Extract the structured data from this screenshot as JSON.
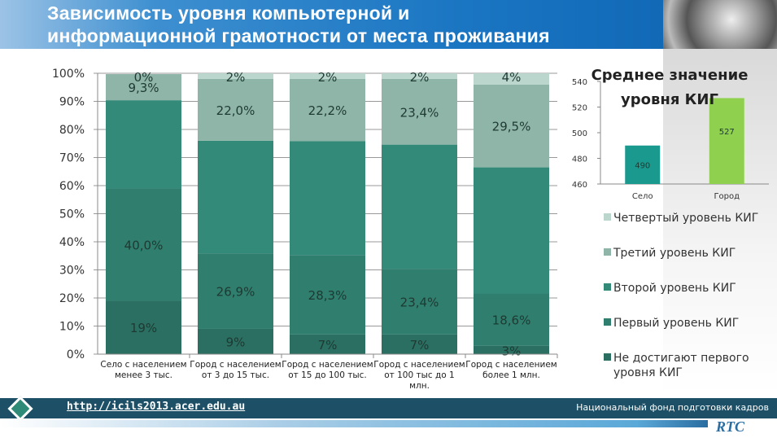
{
  "title_line1": "Зависимость уровня компьютерной и",
  "title_line2": "информационной грамотности от места проживания",
  "footer": {
    "url": "http://icils2013.acer.edu.au",
    "org": "Национальный фонд подготовки кадров",
    "logo": "RTC"
  },
  "chart_data": [
    {
      "type": "bar",
      "stacked": true,
      "ylim": [
        0,
        100
      ],
      "yticks": [
        "0%",
        "10%",
        "20%",
        "30%",
        "40%",
        "50%",
        "60%",
        "70%",
        "80%",
        "90%",
        "100%"
      ],
      "categories": [
        [
          "Село с населением",
          "менее 3 тыс."
        ],
        [
          "Город с населением",
          "от 3 до 15 тыс."
        ],
        [
          "Город с населением",
          "от 15 до 100 тыс."
        ],
        [
          "Город с населением",
          "от 100 тыс до 1",
          "млн."
        ],
        [
          "Город с населением",
          "более 1 млн."
        ]
      ],
      "legend_position": "right",
      "series": [
        {
          "name": "Не достигают первого уровня КИГ",
          "color": "#2a6f61",
          "values": [
            19,
            9,
            7,
            7,
            3
          ],
          "labels": [
            "19%",
            "9%",
            "7%",
            "7%",
            "3%"
          ]
        },
        {
          "name": "Первый уровень КИГ",
          "color": "#2f7e6e",
          "values": [
            40,
            26.9,
            28.3,
            23.4,
            18.6
          ],
          "labels": [
            "40,0%",
            "26,9%",
            "28,3%",
            "23,4%",
            "18,6%"
          ]
        },
        {
          "name": "Второй уровень КИГ",
          "color": "#338a79",
          "values": [
            31.4,
            40.1,
            40.5,
            44.2,
            44.9
          ],
          "labels": [
            null,
            null,
            null,
            null,
            null
          ]
        },
        {
          "name": "Третий уровень КИГ",
          "color": "#8fb5a8",
          "values": [
            9.3,
            22.0,
            22.2,
            23.4,
            29.5
          ],
          "labels": [
            "9,3%",
            "22,0%",
            "22,2%",
            "23,4%",
            "29,5%"
          ]
        },
        {
          "name": "Четвертый уровень КИГ",
          "color": "#bad6cd",
          "values": [
            0,
            2,
            2,
            2,
            4
          ],
          "labels": [
            "0%",
            "2%",
            "2%",
            "2%",
            "4%"
          ]
        }
      ]
    },
    {
      "type": "bar",
      "title_line1": "Среднее значение",
      "title_line2": "уровня КИГ",
      "ylim": [
        460,
        540
      ],
      "yticks": [
        "460",
        "480",
        "500",
        "520",
        "540"
      ],
      "categories": [
        "Село",
        "Город"
      ],
      "values": [
        490,
        527
      ],
      "labels": [
        "490",
        "527"
      ],
      "colors": [
        "#1a9a8f",
        "#8fd14f"
      ]
    }
  ]
}
